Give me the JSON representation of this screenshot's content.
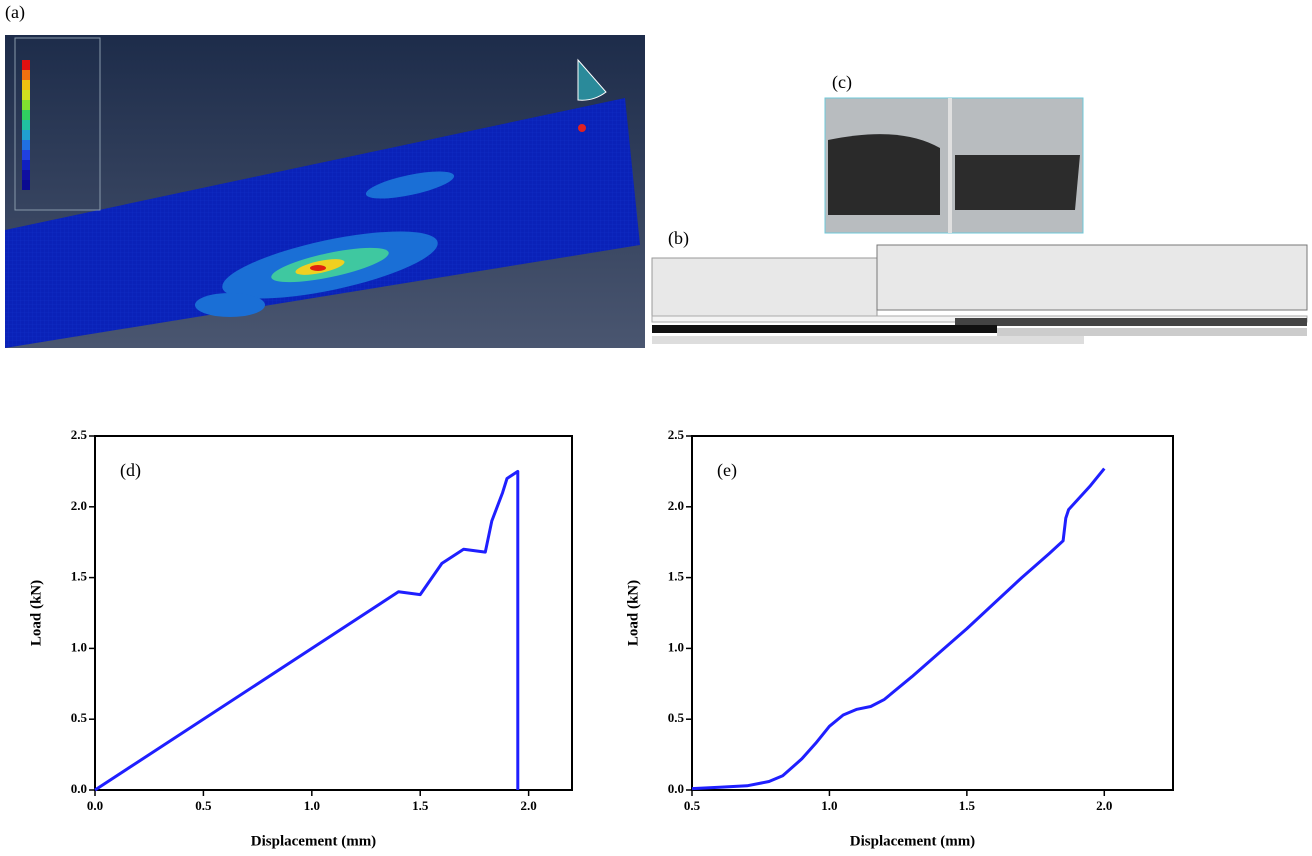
{
  "panels": {
    "a": {
      "label": "(a)"
    },
    "b": {
      "label": "(b)"
    },
    "c": {
      "label": "(c)"
    }
  },
  "chart_data": [
    {
      "type": "line",
      "annotation": "(d)",
      "x_label": "Displacement (mm)",
      "y_label": "Load (kN)",
      "color": "#1f1fff",
      "x": [
        0,
        1.4,
        1.5,
        1.6,
        1.7,
        1.8,
        1.83,
        1.88,
        1.9,
        1.95,
        1.95
      ],
      "values": [
        0,
        1.4,
        1.38,
        1.6,
        1.7,
        1.68,
        1.9,
        2.1,
        2.2,
        2.25,
        0
      ],
      "xlim": [
        0,
        2.2
      ],
      "xticks": [
        {
          "value": 0,
          "label": "0.0"
        },
        0.5,
        {
          "value": 1,
          "label": "1.0"
        },
        1.5,
        {
          "value": 2,
          "label": "2.0"
        }
      ],
      "ylim": [
        0,
        2.5
      ],
      "yticks": [
        {
          "value": 0,
          "label": "0.0"
        },
        0.5,
        {
          "value": 1,
          "label": "1.0"
        },
        1.5,
        {
          "value": 2,
          "label": "2.0"
        },
        2.5
      ]
    },
    {
      "type": "line",
      "annotation": "(e)",
      "x_label": "Displacement (mm)",
      "y_label": "Load (kN)",
      "color": "#1f1fff",
      "x": [
        0.5,
        0.6,
        0.7,
        0.78,
        0.83,
        0.9,
        0.95,
        1.0,
        1.05,
        1.1,
        1.15,
        1.2,
        1.3,
        1.4,
        1.5,
        1.6,
        1.7,
        1.8,
        1.85,
        1.86,
        1.87,
        1.95,
        2.0
      ],
      "values": [
        0.01,
        0.02,
        0.03,
        0.06,
        0.1,
        0.22,
        0.33,
        0.45,
        0.53,
        0.57,
        0.59,
        0.64,
        0.8,
        0.97,
        1.14,
        1.32,
        1.5,
        1.67,
        1.76,
        1.92,
        1.98,
        2.15,
        2.27
      ],
      "xlim": [
        0.5,
        2.25
      ],
      "xticks": [
        0.5,
        {
          "value": 1,
          "label": "1.0"
        },
        1.5,
        {
          "value": 2,
          "label": "2.0"
        }
      ],
      "ylim": [
        0,
        2.5
      ],
      "yticks": [
        {
          "value": 0,
          "label": "0.0"
        },
        0.5,
        {
          "value": 1,
          "label": "1.0"
        },
        1.5,
        {
          "value": 2,
          "label": "2.0"
        },
        2.5
      ]
    }
  ]
}
